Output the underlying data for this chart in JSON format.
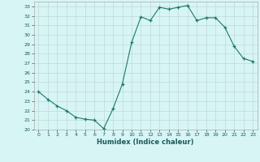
{
  "x": [
    0,
    1,
    2,
    3,
    4,
    5,
    6,
    7,
    8,
    9,
    10,
    11,
    12,
    13,
    14,
    15,
    16,
    17,
    18,
    19,
    20,
    21,
    22,
    23
  ],
  "y": [
    24.0,
    23.2,
    22.5,
    22.0,
    21.3,
    21.1,
    21.0,
    20.1,
    22.2,
    24.8,
    29.2,
    31.9,
    31.5,
    32.9,
    32.7,
    32.9,
    33.1,
    31.5,
    31.8,
    31.8,
    30.8,
    28.8,
    27.5,
    27.2
  ],
  "line_color": "#1a7a6a",
  "marker": "+",
  "bg_color": "#d8f5f5",
  "grid_color": "#c0d8d8",
  "xlabel": "Humidex (Indice chaleur)",
  "xlim": [
    -0.5,
    23.5
  ],
  "ylim": [
    20,
    33.5
  ],
  "yticks": [
    20,
    21,
    22,
    23,
    24,
    25,
    26,
    27,
    28,
    29,
    30,
    31,
    32,
    33
  ],
  "xticks": [
    0,
    1,
    2,
    3,
    4,
    5,
    6,
    7,
    8,
    9,
    10,
    11,
    12,
    13,
    14,
    15,
    16,
    17,
    18,
    19,
    20,
    21,
    22,
    23
  ]
}
